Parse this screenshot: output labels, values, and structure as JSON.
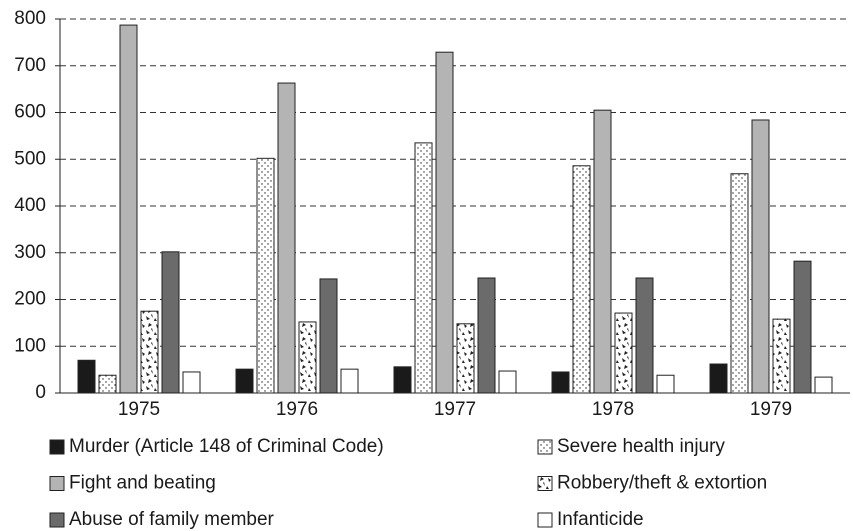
{
  "chart_data": {
    "type": "bar",
    "categories": [
      "1975",
      "1976",
      "1977",
      "1978",
      "1979"
    ],
    "series": [
      {
        "name": "Murder (Article 148 of Criminal Code)",
        "color": "#1a1a1a",
        "values": [
          70,
          51,
          56,
          45,
          62
        ]
      },
      {
        "name": "Severe health injury",
        "color": "#ffffff",
        "pattern": "dots",
        "values": [
          38,
          502,
          535,
          486,
          469
        ]
      },
      {
        "name": "Fight and beating",
        "color": "#b4b4b4",
        "values": [
          787,
          663,
          729,
          605,
          584
        ]
      },
      {
        "name": "Robbery/theft & extortion",
        "color": "#ffffff",
        "pattern": "shards",
        "values": [
          175,
          152,
          148,
          171,
          158
        ]
      },
      {
        "name": "Abuse of family member",
        "color": "#6b6b6b",
        "values": [
          302,
          244,
          246,
          246,
          282
        ]
      },
      {
        "name": "Infanticide",
        "color": "#ffffff",
        "values": [
          45,
          51,
          47,
          38,
          34
        ]
      }
    ],
    "ylim": [
      0,
      800
    ],
    "yticks": [
      0,
      100,
      200,
      300,
      400,
      500,
      600,
      700,
      800
    ],
    "grid": true
  }
}
